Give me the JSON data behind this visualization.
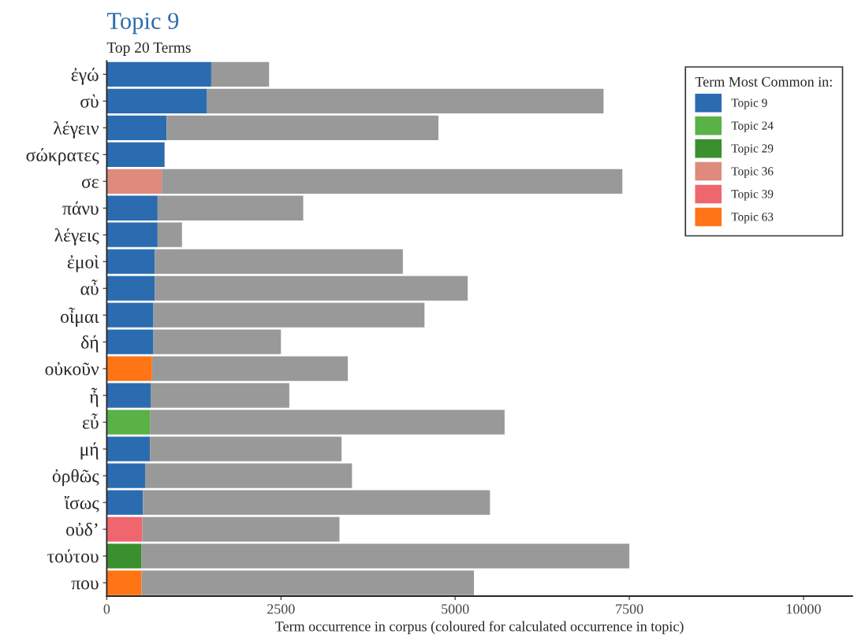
{
  "chart_data": {
    "type": "bar",
    "orientation": "horizontal",
    "stacked": true,
    "title": "Topic 9",
    "subtitle": "Top 20 Terms",
    "xlabel": "Term occurrence in corpus (coloured for calculated occurrence in topic)",
    "legend_title": "Term Most Common in:",
    "legend": "top right",
    "grid": false,
    "categories": [
      "ἐγώ",
      "σὺ",
      "λέγειν",
      "σώκρατες",
      "σε",
      "πάνυ",
      "λέγεις",
      "ἐμοὶ",
      "αὖ",
      "οἶμαι",
      "δή",
      "οὐκοῦν",
      "ἦ",
      "εὖ",
      "μή",
      "ὀρθῶς",
      "ἴσως",
      "οὐδ’",
      "τούτου",
      "που"
    ],
    "xlim": [
      0,
      10700
    ],
    "xticks": [
      0,
      2500,
      5000,
      7500,
      10000
    ],
    "series": [
      {
        "name": "Topic 9",
        "color": "#2b6cb0",
        "values": [
          1500,
          1440,
          860,
          830,
          null,
          730,
          730,
          690,
          690,
          670,
          670,
          null,
          630,
          null,
          620,
          550,
          520,
          null,
          null,
          null
        ]
      },
      {
        "name": "Topic 24",
        "color": "#5ab246",
        "values": [
          null,
          null,
          null,
          null,
          null,
          null,
          null,
          null,
          null,
          null,
          null,
          null,
          null,
          620,
          null,
          null,
          null,
          null,
          null,
          null
        ]
      },
      {
        "name": "Topic 29",
        "color": "#3a8f2e",
        "values": [
          null,
          null,
          null,
          null,
          null,
          null,
          null,
          null,
          null,
          null,
          null,
          null,
          null,
          null,
          null,
          null,
          null,
          null,
          500,
          null
        ]
      },
      {
        "name": "Topic 36",
        "color": "#de8a7c",
        "values": [
          null,
          null,
          null,
          null,
          790,
          null,
          null,
          null,
          null,
          null,
          null,
          null,
          null,
          null,
          null,
          null,
          null,
          null,
          null,
          null
        ]
      },
      {
        "name": "Topic 39",
        "color": "#f0666e",
        "values": [
          null,
          null,
          null,
          null,
          null,
          null,
          null,
          null,
          null,
          null,
          null,
          null,
          null,
          null,
          null,
          null,
          null,
          510,
          null,
          null
        ]
      },
      {
        "name": "Topic 63",
        "color": "#ff7415",
        "values": [
          null,
          null,
          null,
          null,
          null,
          null,
          null,
          null,
          null,
          null,
          null,
          650,
          null,
          null,
          null,
          null,
          null,
          null,
          null,
          500
        ]
      },
      {
        "color": "#999999",
        "values": [
          830,
          5690,
          3900,
          null,
          6610,
          2090,
          350,
          3560,
          4490,
          3890,
          1830,
          2810,
          1990,
          5090,
          2750,
          2970,
          4980,
          2830,
          7000,
          4770
        ]
      }
    ]
  }
}
